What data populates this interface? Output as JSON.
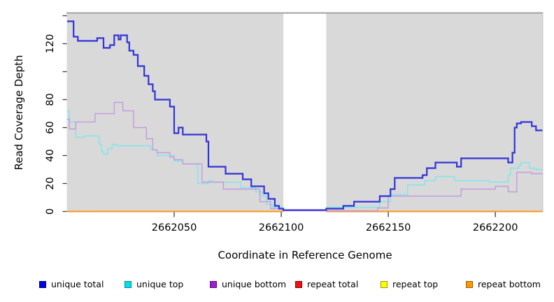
{
  "chart_data": {
    "type": "line",
    "subtype": "step-coverage",
    "title": "",
    "xlabel": "Coordinate in Reference Genome",
    "ylabel": "Read Coverage Depth",
    "xlim": [
      2662000,
      2662222
    ],
    "ylim": [
      0,
      140
    ],
    "grid": false,
    "legend_position": "bottom",
    "x_ticks": [
      {
        "v": 2662050,
        "label": "2662050"
      },
      {
        "v": 2662100,
        "label": "2662100"
      },
      {
        "v": 2662150,
        "label": "2662150"
      },
      {
        "v": 2662200,
        "label": "2662200"
      }
    ],
    "y_ticks": [
      {
        "v": 0,
        "label": "0"
      },
      {
        "v": 20,
        "label": "20"
      },
      {
        "v": 40,
        "label": "40"
      },
      {
        "v": 60,
        "label": "60"
      },
      {
        "v": 80,
        "label": "80"
      },
      {
        "v": 100,
        "label": ""
      },
      {
        "v": 120,
        "label": "120"
      },
      {
        "v": 140,
        "label": ""
      }
    ],
    "colors": {
      "plot_background": "#d9d9d9",
      "page_background": "#ffffff",
      "top_border": "#8e8e8e",
      "right_border": "#c8c8c8",
      "tick": "#3c3c3c"
    },
    "masked_region": {
      "x_start": 2662101,
      "x_end": 2662121,
      "fill": "#ffffff"
    },
    "series": [
      {
        "name": "unique top",
        "color": "#7fe5ec",
        "width": 1.4,
        "layer": "below-mask",
        "step_points": [
          [
            2662000,
            72
          ],
          [
            2662001,
            64
          ],
          [
            2662004,
            53
          ],
          [
            2662008,
            54
          ],
          [
            2662015,
            48
          ],
          [
            2662016,
            43
          ],
          [
            2662017,
            41
          ],
          [
            2662019,
            45
          ],
          [
            2662021,
            48
          ],
          [
            2662023,
            47
          ],
          [
            2662039,
            44
          ],
          [
            2662042,
            40
          ],
          [
            2662050,
            36
          ],
          [
            2662054,
            34
          ],
          [
            2662061,
            20
          ],
          [
            2662066,
            22
          ],
          [
            2662068,
            21
          ],
          [
            2662081,
            17
          ],
          [
            2662088,
            14
          ],
          [
            2662091,
            11
          ],
          [
            2662093,
            5
          ],
          [
            2662096,
            3
          ],
          [
            2662121,
            3
          ],
          [
            2662146,
            7
          ],
          [
            2662151,
            12
          ],
          [
            2662159,
            19
          ],
          [
            2662167,
            22
          ],
          [
            2662172,
            25
          ],
          [
            2662181,
            22
          ],
          [
            2662197,
            21
          ],
          [
            2662206,
            26
          ],
          [
            2662207,
            31
          ],
          [
            2662211,
            33
          ],
          [
            2662212,
            35
          ],
          [
            2662216,
            31
          ],
          [
            2662219,
            30
          ]
        ]
      },
      {
        "name": "repeat top",
        "color": "#f2e600",
        "width": 1.4,
        "layer": "below-mask",
        "step_points": [
          [
            2662000,
            0
          ]
        ]
      },
      {
        "name": "repeat total",
        "color": "#dd2222",
        "width": 1.4,
        "layer": "below-mask",
        "step_points": [
          [
            2662000,
            0
          ]
        ]
      },
      {
        "name": "repeat bottom",
        "color": "#ff9517",
        "width": 2.0,
        "layer": "below-mask",
        "step_points": [
          [
            2662000,
            0
          ]
        ]
      },
      {
        "name": "unique bottom",
        "color": "#c49bdb",
        "width": 1.4,
        "layer": "above-mask",
        "step_points": [
          [
            2662000,
            66
          ],
          [
            2662001,
            59
          ],
          [
            2662004,
            64
          ],
          [
            2662013,
            70
          ],
          [
            2662022,
            78
          ],
          [
            2662026,
            72
          ],
          [
            2662031,
            60
          ],
          [
            2662037,
            52
          ],
          [
            2662040,
            44
          ],
          [
            2662042,
            42
          ],
          [
            2662048,
            39
          ],
          [
            2662050,
            37
          ],
          [
            2662054,
            34
          ],
          [
            2662063,
            21
          ],
          [
            2662073,
            16
          ],
          [
            2662090,
            7
          ],
          [
            2662095,
            2
          ],
          [
            2662101,
            0.5
          ],
          [
            2662145,
            2.5
          ],
          [
            2662150,
            11
          ],
          [
            2662184,
            16
          ],
          [
            2662200,
            18
          ],
          [
            2662206,
            14
          ],
          [
            2662210,
            28
          ],
          [
            2662217,
            27
          ]
        ]
      },
      {
        "name": "unique total",
        "color": "#3134d6",
        "width": 2.2,
        "layer": "above-mask",
        "step_points": [
          [
            2662000,
            136
          ],
          [
            2662003,
            125
          ],
          [
            2662005,
            122
          ],
          [
            2662014,
            124
          ],
          [
            2662017,
            117
          ],
          [
            2662020,
            119
          ],
          [
            2662022,
            126
          ],
          [
            2662024,
            123
          ],
          [
            2662025,
            126
          ],
          [
            2662028,
            121
          ],
          [
            2662029,
            115
          ],
          [
            2662031,
            112
          ],
          [
            2662033,
            104
          ],
          [
            2662036,
            97
          ],
          [
            2662038,
            91
          ],
          [
            2662040,
            86
          ],
          [
            2662041,
            80
          ],
          [
            2662048,
            75
          ],
          [
            2662050,
            56
          ],
          [
            2662052,
            60
          ],
          [
            2662054,
            55
          ],
          [
            2662065,
            50
          ],
          [
            2662066,
            32
          ],
          [
            2662074,
            27
          ],
          [
            2662082,
            23
          ],
          [
            2662086,
            18
          ],
          [
            2662092,
            13
          ],
          [
            2662094,
            9
          ],
          [
            2662097,
            4
          ],
          [
            2662099,
            2
          ],
          [
            2662101,
            1
          ],
          [
            2662121,
            2
          ],
          [
            2662129,
            4
          ],
          [
            2662134,
            7
          ],
          [
            2662146,
            11
          ],
          [
            2662151,
            16
          ],
          [
            2662153,
            24
          ],
          [
            2662166,
            26
          ],
          [
            2662168,
            31
          ],
          [
            2662172,
            35
          ],
          [
            2662182,
            32
          ],
          [
            2662184,
            38
          ],
          [
            2662206,
            35
          ],
          [
            2662208,
            42
          ],
          [
            2662209,
            60
          ],
          [
            2662210,
            63
          ],
          [
            2662212,
            64
          ],
          [
            2662217,
            61
          ],
          [
            2662219,
            58
          ]
        ]
      }
    ],
    "legend": {
      "items": [
        {
          "label": "unique total",
          "fill": "#0000e0",
          "border": "#000080"
        },
        {
          "label": "unique top",
          "fill": "#00dfe8",
          "border": "#008b93"
        },
        {
          "label": "unique bottom",
          "fill": "#9c1cce",
          "border": "#5e1080"
        },
        {
          "label": "repeat total",
          "fill": "#ee1111",
          "border": "#8e0000"
        },
        {
          "label": "repeat top",
          "fill": "#ffff00",
          "border": "#9a9a00"
        },
        {
          "label": "repeat bottom",
          "fill": "#ff9800",
          "border": "#a05e00"
        }
      ]
    }
  }
}
